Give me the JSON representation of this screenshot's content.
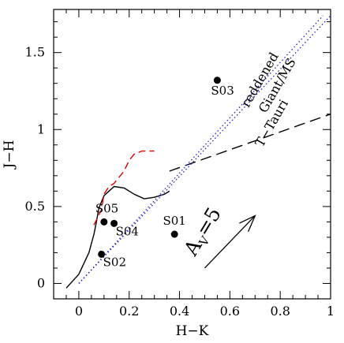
{
  "chart_data": {
    "type": "scatter",
    "title": "",
    "xlabel": "H−K",
    "ylabel": "J−H",
    "xlim": [
      -0.1,
      1.0
    ],
    "ylim": [
      -0.1,
      1.78
    ],
    "xticks": [
      {
        "value": 0,
        "label": "0"
      },
      {
        "value": 0.2,
        "label": "0.2"
      },
      {
        "value": 0.4,
        "label": "0.4"
      },
      {
        "value": 0.6,
        "label": "0.6"
      },
      {
        "value": 0.8,
        "label": "0.8"
      },
      {
        "value": 1.0,
        "label": "1"
      }
    ],
    "yticks": [
      {
        "value": 0,
        "label": "0"
      },
      {
        "value": 0.5,
        "label": "0.5"
      },
      {
        "value": 1.0,
        "label": "1"
      },
      {
        "value": 1.5,
        "label": "1.5"
      }
    ],
    "grid": false,
    "points": [
      {
        "name": "S01",
        "x": 0.38,
        "y": 0.32
      },
      {
        "name": "S02",
        "x": 0.09,
        "y": 0.19
      },
      {
        "name": "S03",
        "x": 0.55,
        "y": 1.32
      },
      {
        "name": "S04",
        "x": 0.14,
        "y": 0.39
      },
      {
        "name": "S05",
        "x": 0.1,
        "y": 0.4
      }
    ],
    "curves": [
      {
        "id": "main-sequence",
        "style": "solid",
        "color": "#000000",
        "x": [
          -0.05,
          0.0,
          0.04,
          0.06,
          0.07,
          0.08,
          0.1,
          0.14,
          0.18,
          0.22,
          0.26,
          0.3,
          0.34,
          0.36
        ],
        "y": [
          -0.03,
          0.06,
          0.2,
          0.32,
          0.4,
          0.49,
          0.57,
          0.63,
          0.62,
          0.58,
          0.55,
          0.56,
          0.58,
          0.6
        ]
      },
      {
        "id": "giant-branch",
        "style": "dashed",
        "color": "#e00000",
        "x": [
          0.06,
          0.09,
          0.1,
          0.12,
          0.14,
          0.18,
          0.2,
          0.22,
          0.25,
          0.28,
          0.3
        ],
        "y": [
          0.38,
          0.48,
          0.58,
          0.63,
          0.65,
          0.73,
          0.8,
          0.84,
          0.86,
          0.86,
          0.86
        ]
      },
      {
        "id": "ctts-locus",
        "style": "dashed",
        "color": "#000000",
        "x": [
          0.36,
          1.0
        ],
        "y": [
          0.73,
          1.1
        ]
      },
      {
        "id": "reddening-upper",
        "style": "dotted",
        "color": "#2222cc",
        "x": [
          0.0,
          0.97
        ],
        "y": [
          0.0,
          1.74
        ]
      },
      {
        "id": "reddening-lower",
        "style": "dotted",
        "color": "#2222cc",
        "x": [
          0.0,
          1.0
        ],
        "y": [
          0.0,
          1.74
        ]
      }
    ],
    "annotations": [
      {
        "id": "reddened",
        "text": "reddened"
      },
      {
        "id": "giant-ms",
        "text": "Giant/MS"
      },
      {
        "id": "t-tauri",
        "text": "T−Tauri"
      }
    ],
    "reddening_vector": {
      "label_main": "A",
      "label_sub": "V",
      "label_value": "=5",
      "from": [
        0.5,
        0.1
      ],
      "to": [
        0.7,
        0.44
      ]
    }
  }
}
